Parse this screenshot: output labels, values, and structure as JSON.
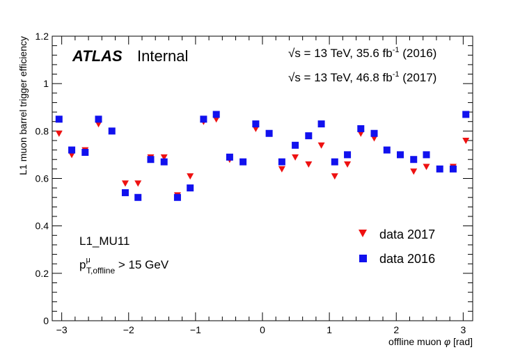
{
  "chart_data": {
    "type": "scatter",
    "ylabel": "L1 muon barrel trigger efficiency",
    "xlabel_prefix": "offline muon ",
    "xlabel_symbol": "φ",
    "xlabel_unit": " [rad]",
    "xlim": [
      -3.142,
      3.142
    ],
    "ylim": [
      0,
      1.2
    ],
    "x_ticks": [
      -3,
      -2,
      -1,
      0,
      1,
      2,
      3
    ],
    "x_tick_labels": [
      "−3",
      "−2",
      "−1",
      "0",
      "1",
      "2",
      "3"
    ],
    "y_ticks": [
      0,
      0.2,
      0.4,
      0.6,
      0.8,
      1,
      1.2
    ],
    "y_tick_labels": [
      "0",
      "0.2",
      "0.4",
      "0.6",
      "0.8",
      "1",
      "1.2"
    ],
    "legend_position": "bottom-right",
    "annotations": {
      "atlas": "ATLAS",
      "internal": "Internal",
      "lumi_2016": "√s = 13 TeV, 35.6 fb",
      "lumi_2016_exp": "-1",
      "lumi_2016_year": " (2016)",
      "lumi_2017": "√s = 13 TeV, 46.8 fb",
      "lumi_2017_exp": "-1",
      "lumi_2017_year": " (2017)",
      "trigger": "L1_MU11",
      "pt_p": "p",
      "pt_sup": "μ",
      "pt_sub": "T,offline",
      "pt_cut": " > 15 GeV"
    },
    "x": [
      -3.04,
      -2.85,
      -2.65,
      -2.45,
      -2.25,
      -2.05,
      -1.86,
      -1.67,
      -1.47,
      -1.27,
      -1.08,
      -0.88,
      -0.69,
      -0.49,
      -0.29,
      -0.1,
      0.1,
      0.29,
      0.49,
      0.69,
      0.88,
      1.08,
      1.27,
      1.47,
      1.67,
      1.86,
      2.06,
      2.26,
      2.45,
      2.65,
      2.85,
      3.04
    ],
    "series": [
      {
        "name": "data 2017",
        "marker": "triangle-down",
        "color": "#ee1111",
        "values": [
          0.79,
          0.7,
          0.72,
          0.83,
          0.8,
          0.58,
          0.58,
          0.69,
          0.69,
          0.53,
          0.61,
          0.84,
          0.85,
          0.68,
          0.67,
          0.81,
          0.79,
          0.64,
          0.69,
          0.66,
          0.74,
          0.61,
          0.66,
          0.79,
          0.77,
          0.72,
          0.7,
          0.63,
          0.65,
          0.64,
          0.65,
          0.76
        ]
      },
      {
        "name": "data 2016",
        "marker": "square",
        "color": "#1111ee",
        "values": [
          0.85,
          0.72,
          0.71,
          0.85,
          0.8,
          0.54,
          0.52,
          0.68,
          0.67,
          0.52,
          0.56,
          0.85,
          0.87,
          0.69,
          0.67,
          0.83,
          0.79,
          0.67,
          0.74,
          0.78,
          0.83,
          0.67,
          0.7,
          0.81,
          0.79,
          0.72,
          0.7,
          0.68,
          0.7,
          0.64,
          0.64,
          0.87
        ]
      }
    ]
  }
}
